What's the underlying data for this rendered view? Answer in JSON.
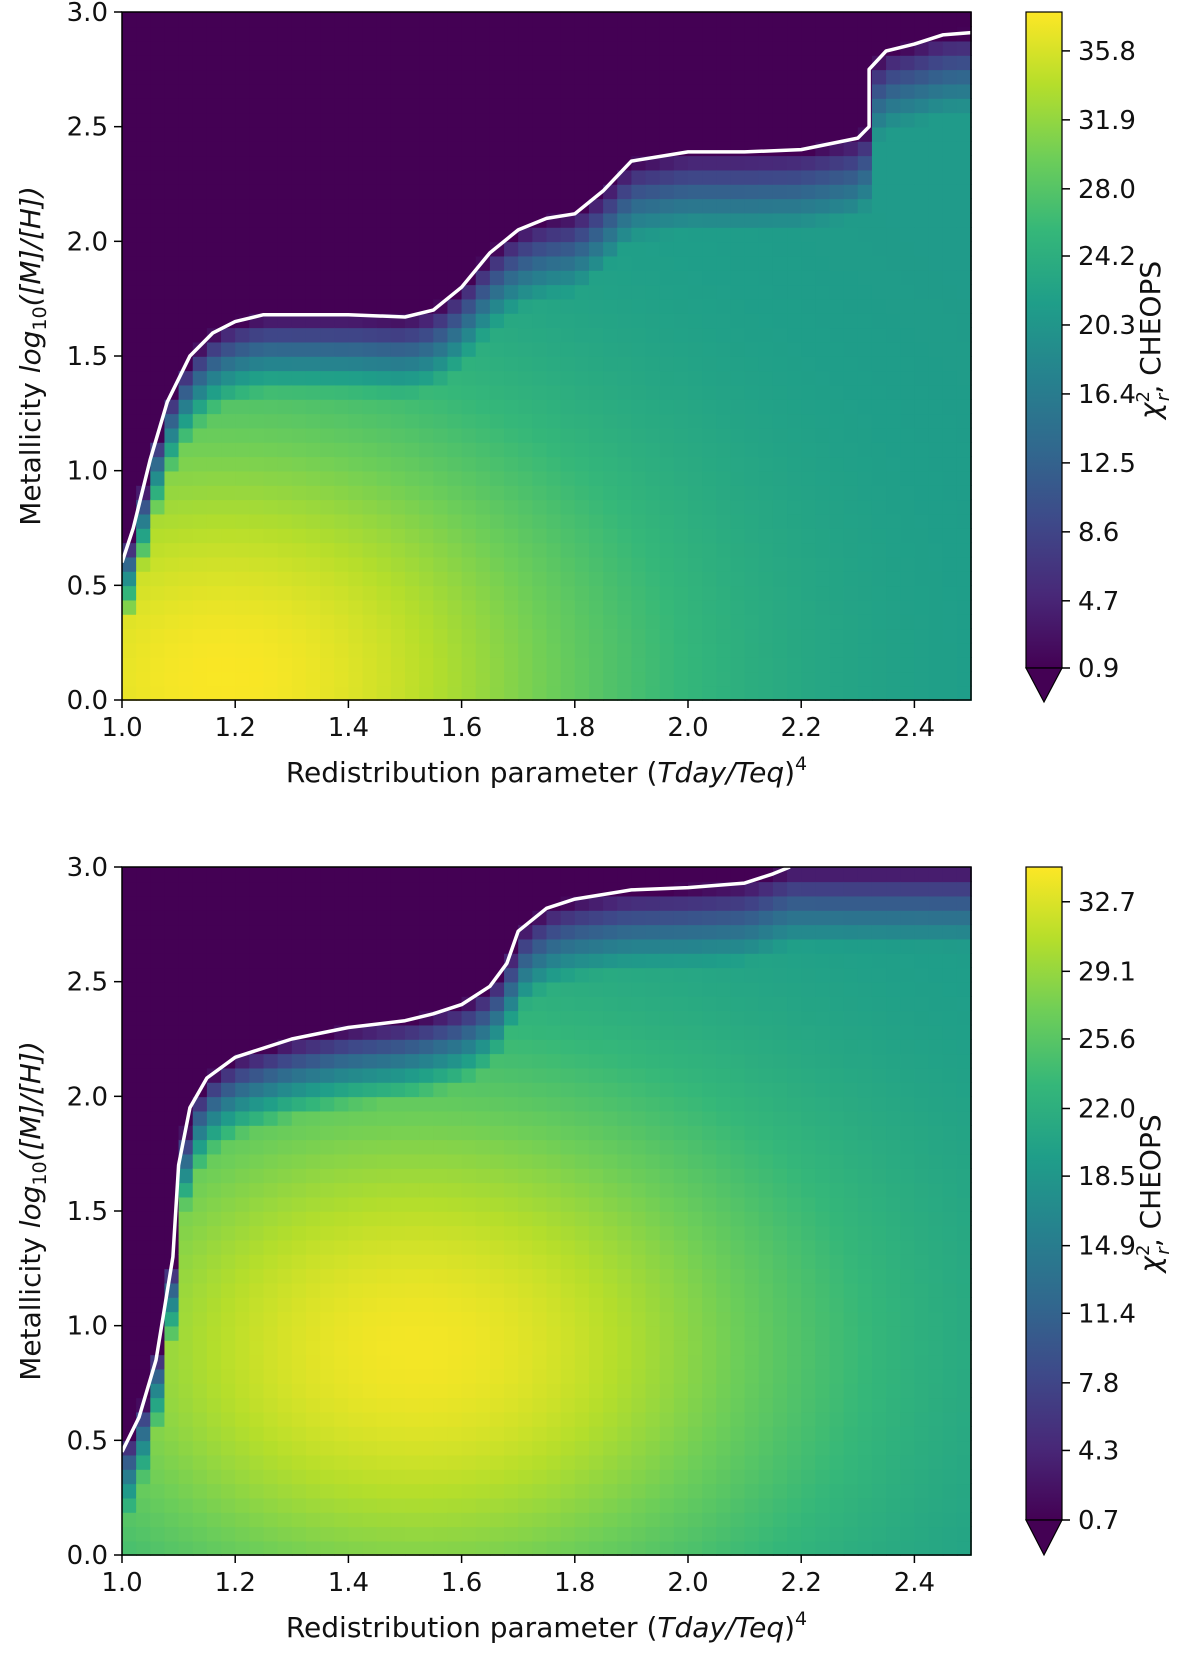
{
  "chart_data": [
    {
      "type": "heatmap",
      "xlabel": "Redistribution parameter (Tday/Teq)^4",
      "ylabel": "Metallicity log10([M]/[H])",
      "xlim": [
        1.0,
        2.5
      ],
      "ylim": [
        0.0,
        3.0
      ],
      "x_ticks": [
        "1.0",
        "1.2",
        "1.4",
        "1.6",
        "1.8",
        "2.0",
        "2.2",
        "2.4"
      ],
      "y_ticks": [
        "0.0",
        "0.5",
        "1.0",
        "1.5",
        "2.0",
        "2.5",
        "3.0"
      ],
      "colormap": "viridis",
      "colorbar": {
        "label": "χr², CHEOPS",
        "ticks": [
          "0.9",
          "4.7",
          "8.6",
          "12.5",
          "16.4",
          "20.3",
          "24.2",
          "28.0",
          "31.9",
          "35.8"
        ],
        "min": 0.9,
        "max": 38.0,
        "extend": "min"
      },
      "field": {
        "peak": [
          1.18,
          0.1
        ],
        "peak_value": 37.8,
        "far_value": 21.0,
        "below_contour_low_value": 0.9
      },
      "contour": {
        "color": "#ffffff",
        "points": [
          [
            1.0,
            0.6
          ],
          [
            1.02,
            0.75
          ],
          [
            1.05,
            1.05
          ],
          [
            1.08,
            1.3
          ],
          [
            1.12,
            1.5
          ],
          [
            1.16,
            1.6
          ],
          [
            1.2,
            1.65
          ],
          [
            1.25,
            1.68
          ],
          [
            1.3,
            1.68
          ],
          [
            1.4,
            1.68
          ],
          [
            1.5,
            1.67
          ],
          [
            1.55,
            1.7
          ],
          [
            1.6,
            1.8
          ],
          [
            1.65,
            1.95
          ],
          [
            1.7,
            2.05
          ],
          [
            1.75,
            2.1
          ],
          [
            1.8,
            2.12
          ],
          [
            1.85,
            2.22
          ],
          [
            1.9,
            2.35
          ],
          [
            2.0,
            2.39
          ],
          [
            2.1,
            2.39
          ],
          [
            2.2,
            2.4
          ],
          [
            2.3,
            2.45
          ],
          [
            2.32,
            2.5
          ],
          [
            2.32,
            2.75
          ],
          [
            2.35,
            2.83
          ],
          [
            2.4,
            2.86
          ],
          [
            2.45,
            2.9
          ],
          [
            2.5,
            2.91
          ]
        ]
      }
    },
    {
      "type": "heatmap",
      "xlabel": "Redistribution parameter (Tday/Teq)^4",
      "ylabel": "Metallicity log10([M]/[H])",
      "xlim": [
        1.0,
        2.5
      ],
      "ylim": [
        0.0,
        3.0
      ],
      "x_ticks": [
        "1.0",
        "1.2",
        "1.4",
        "1.6",
        "1.8",
        "2.0",
        "2.2",
        "2.4"
      ],
      "y_ticks": [
        "0.0",
        "0.5",
        "1.0",
        "1.5",
        "2.0",
        "2.5",
        "3.0"
      ],
      "colormap": "viridis",
      "colorbar": {
        "label": "χr², CHEOPS",
        "ticks": [
          "0.7",
          "4.3",
          "7.8",
          "11.4",
          "14.9",
          "18.5",
          "22.0",
          "25.6",
          "29.1",
          "32.7"
        ],
        "min": 0.7,
        "max": 34.5,
        "extend": "min"
      },
      "field": {
        "peak": [
          1.52,
          0.9
        ],
        "peak_value": 34.0,
        "far_value": 19.0,
        "below_contour_low_value": 0.7
      },
      "contour": {
        "color": "#ffffff",
        "points": [
          [
            1.0,
            0.45
          ],
          [
            1.03,
            0.6
          ],
          [
            1.06,
            0.85
          ],
          [
            1.09,
            1.3
          ],
          [
            1.1,
            1.7
          ],
          [
            1.12,
            1.95
          ],
          [
            1.15,
            2.08
          ],
          [
            1.2,
            2.17
          ],
          [
            1.3,
            2.25
          ],
          [
            1.4,
            2.3
          ],
          [
            1.5,
            2.33
          ],
          [
            1.55,
            2.36
          ],
          [
            1.6,
            2.4
          ],
          [
            1.65,
            2.48
          ],
          [
            1.68,
            2.58
          ],
          [
            1.7,
            2.72
          ],
          [
            1.75,
            2.82
          ],
          [
            1.8,
            2.86
          ],
          [
            1.9,
            2.9
          ],
          [
            2.0,
            2.91
          ],
          [
            2.1,
            2.93
          ],
          [
            2.15,
            2.97
          ],
          [
            2.18,
            3.0
          ]
        ]
      }
    }
  ]
}
